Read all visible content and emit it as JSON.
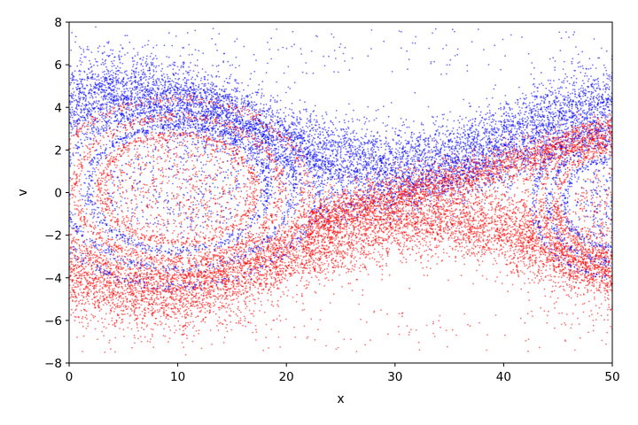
{
  "chart_data": {
    "type": "scatter",
    "title": "",
    "xlabel": "x",
    "ylabel": "v",
    "xlim": [
      0,
      50
    ],
    "ylim": [
      -8,
      8
    ],
    "xticks": [
      0,
      10,
      20,
      30,
      40,
      50
    ],
    "yticks": [
      -8,
      -6,
      -4,
      -2,
      0,
      2,
      4,
      6,
      8
    ],
    "xtick_labels": [
      "0",
      "10",
      "20",
      "30",
      "40",
      "50"
    ],
    "ytick_labels": [
      "−8",
      "−6",
      "−4",
      "−2",
      "0",
      "2",
      "4",
      "6",
      "8"
    ],
    "grid": false,
    "legend": "none",
    "series": [
      {
        "color": "#0000ff",
        "approx_points": 9000,
        "description_regions": [
          {
            "x": [
              0,
              22
            ],
            "v_center": 4.6,
            "spread": 0.9
          },
          {
            "x": [
              20,
              50
            ],
            "v_center": 2.6,
            "spread": 1.0
          },
          {
            "x": [
              42,
              50
            ],
            "v_center": 4.5,
            "spread": 0.8
          }
        ]
      },
      {
        "color": "#ff0000",
        "approx_points": 9000,
        "description_regions": [
          {
            "x": [
              0,
              20
            ],
            "v_center": -4.6,
            "spread": 0.8
          },
          {
            "x": [
              20,
              45
            ],
            "v_center": -2.5,
            "spread": 1.2
          },
          {
            "x": [
              40,
              50
            ],
            "v_center": -4.2,
            "spread": 0.7
          }
        ]
      }
    ]
  }
}
